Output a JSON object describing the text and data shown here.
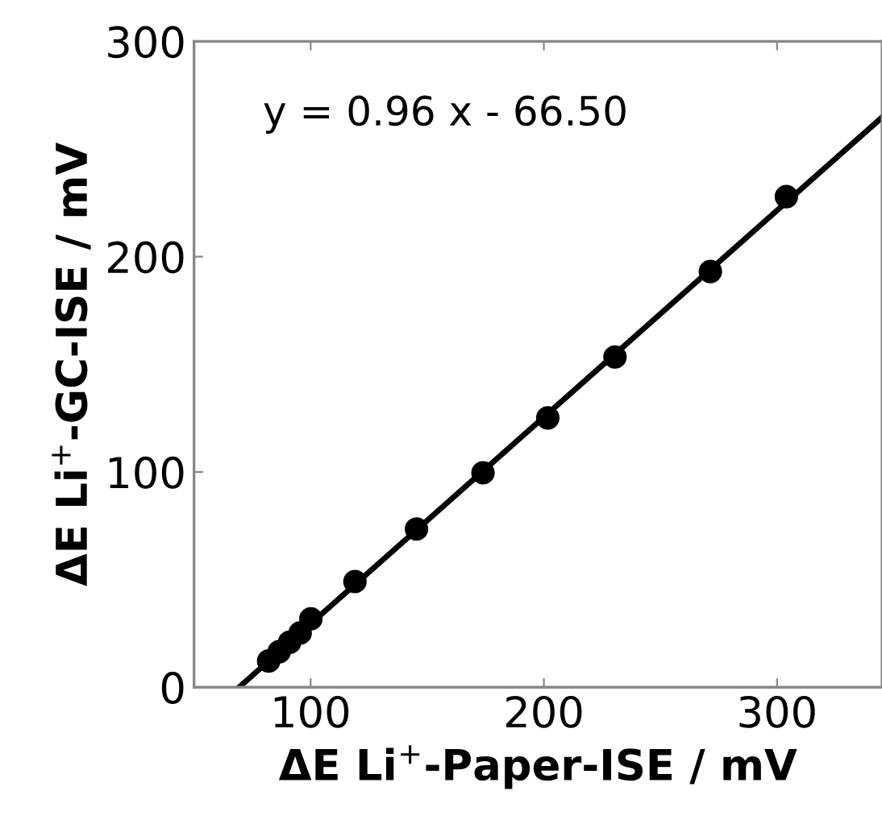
{
  "chart_data": {
    "type": "scatter",
    "xlabel": "ΔE Li$^{+}$-Paper-ISE / mV",
    "ylabel": "ΔE Li$^{+}$-GC-ISE / mV",
    "annotations": [
      "y = 0.96 x - 66.50"
    ],
    "xlim": [
      50,
      345
    ],
    "ylim": [
      0,
      300
    ],
    "xticks": [
      100,
      200,
      300
    ],
    "yticks": [
      0,
      100,
      200,
      300
    ],
    "grid": false,
    "legend": false,
    "series": [
      {
        "color": "#000000",
        "marker": "circle",
        "x": [
          82,
          86.5,
          91,
          95.5,
          100.1,
          119,
          145.4,
          173.9,
          201.7,
          230.5,
          271.4,
          304
        ],
        "values": [
          12.2,
          16.5,
          20.9,
          25.2,
          31.8,
          49.1,
          73.5,
          99.6,
          125.1,
          153.4,
          193.1,
          227.9
        ]
      },
      {
        "type": "line",
        "color": "#000000",
        "line_style": "solid",
        "x": [
          69.3,
          345
        ],
        "values": [
          0,
          264.7
        ]
      }
    ]
  }
}
